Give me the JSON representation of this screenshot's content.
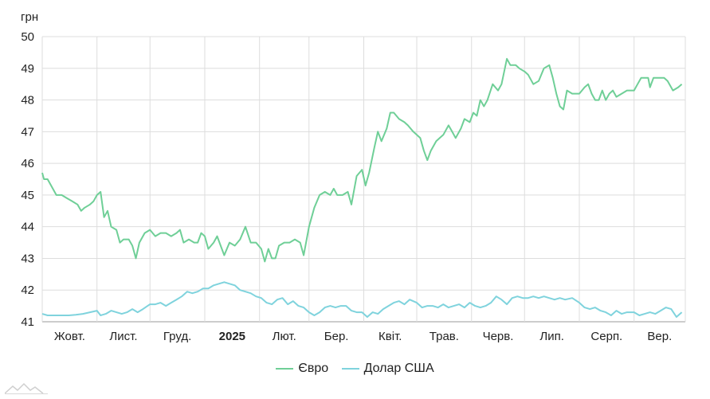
{
  "chart_data": {
    "type": "line",
    "ylabel": "грн",
    "ylim": [
      41,
      50
    ],
    "yticks": [
      "50",
      "49",
      "48",
      "47",
      "46",
      "45",
      "44",
      "43",
      "42",
      "41"
    ],
    "grid": true,
    "legend_position": "bottom-center",
    "xlim": [
      "2024-10-01",
      "2025-09-30"
    ],
    "x_ticks": [
      {
        "date": "2024-10-01",
        "label": "Жовт.",
        "bold": false
      },
      {
        "date": "2024-11-01",
        "label": "Лист.",
        "bold": false
      },
      {
        "date": "2024-12-01",
        "label": "Груд.",
        "bold": false
      },
      {
        "date": "2025-01-01",
        "label": "2025",
        "bold": true
      },
      {
        "date": "2025-02-01",
        "label": "Лют.",
        "bold": false
      },
      {
        "date": "2025-03-01",
        "label": "Бер.",
        "bold": false
      },
      {
        "date": "2025-04-01",
        "label": "Квіт.",
        "bold": false
      },
      {
        "date": "2025-05-01",
        "label": "Трав.",
        "bold": false
      },
      {
        "date": "2025-06-01",
        "label": "Черв.",
        "bold": false
      },
      {
        "date": "2025-07-01",
        "label": "Лип.",
        "bold": false
      },
      {
        "date": "2025-08-01",
        "label": "Серп.",
        "bold": false
      },
      {
        "date": "2025-09-01",
        "label": "Вер.",
        "bold": false
      }
    ],
    "series": [
      {
        "name": "Євро",
        "color": "#6fcf97",
        "points": [
          [
            "2024-10-01",
            45.7
          ],
          [
            "2024-10-02",
            45.5
          ],
          [
            "2024-10-04",
            45.5
          ],
          [
            "2024-10-07",
            45.2
          ],
          [
            "2024-10-09",
            45.0
          ],
          [
            "2024-10-12",
            45.0
          ],
          [
            "2024-10-15",
            44.9
          ],
          [
            "2024-10-18",
            44.8
          ],
          [
            "2024-10-21",
            44.7
          ],
          [
            "2024-10-23",
            44.5
          ],
          [
            "2024-10-25",
            44.6
          ],
          [
            "2024-10-28",
            44.7
          ],
          [
            "2024-10-30",
            44.8
          ],
          [
            "2024-11-01",
            45.0
          ],
          [
            "2024-11-03",
            45.1
          ],
          [
            "2024-11-05",
            44.3
          ],
          [
            "2024-11-07",
            44.5
          ],
          [
            "2024-11-09",
            44.0
          ],
          [
            "2024-11-12",
            43.9
          ],
          [
            "2024-11-14",
            43.5
          ],
          [
            "2024-11-16",
            43.6
          ],
          [
            "2024-11-19",
            43.6
          ],
          [
            "2024-11-21",
            43.4
          ],
          [
            "2024-11-23",
            43.0
          ],
          [
            "2024-11-25",
            43.5
          ],
          [
            "2024-11-28",
            43.8
          ],
          [
            "2024-12-01",
            43.9
          ],
          [
            "2024-12-04",
            43.7
          ],
          [
            "2024-12-07",
            43.8
          ],
          [
            "2024-12-10",
            43.8
          ],
          [
            "2024-12-13",
            43.7
          ],
          [
            "2024-12-16",
            43.8
          ],
          [
            "2024-12-18",
            43.9
          ],
          [
            "2024-12-20",
            43.5
          ],
          [
            "2024-12-23",
            43.6
          ],
          [
            "2024-12-26",
            43.5
          ],
          [
            "2024-12-28",
            43.5
          ],
          [
            "2024-12-30",
            43.8
          ],
          [
            "2025-01-01",
            43.7
          ],
          [
            "2025-01-03",
            43.3
          ],
          [
            "2025-01-06",
            43.5
          ],
          [
            "2025-01-08",
            43.7
          ],
          [
            "2025-01-10",
            43.4
          ],
          [
            "2025-01-12",
            43.1
          ],
          [
            "2025-01-15",
            43.5
          ],
          [
            "2025-01-18",
            43.4
          ],
          [
            "2025-01-21",
            43.6
          ],
          [
            "2025-01-24",
            44.0
          ],
          [
            "2025-01-27",
            43.5
          ],
          [
            "2025-01-30",
            43.5
          ],
          [
            "2025-02-02",
            43.3
          ],
          [
            "2025-02-04",
            42.9
          ],
          [
            "2025-02-06",
            43.3
          ],
          [
            "2025-02-08",
            43.0
          ],
          [
            "2025-02-10",
            43.0
          ],
          [
            "2025-02-12",
            43.4
          ],
          [
            "2025-02-15",
            43.5
          ],
          [
            "2025-02-18",
            43.5
          ],
          [
            "2025-02-21",
            43.6
          ],
          [
            "2025-02-24",
            43.5
          ],
          [
            "2025-02-26",
            43.1
          ],
          [
            "2025-03-01",
            44.0
          ],
          [
            "2025-03-04",
            44.6
          ],
          [
            "2025-03-07",
            45.0
          ],
          [
            "2025-03-10",
            45.1
          ],
          [
            "2025-03-13",
            45.0
          ],
          [
            "2025-03-15",
            45.2
          ],
          [
            "2025-03-17",
            45.0
          ],
          [
            "2025-03-20",
            45.0
          ],
          [
            "2025-03-23",
            45.1
          ],
          [
            "2025-03-25",
            44.7
          ],
          [
            "2025-03-28",
            45.6
          ],
          [
            "2025-03-31",
            45.8
          ],
          [
            "2025-04-02",
            45.3
          ],
          [
            "2025-04-04",
            45.7
          ],
          [
            "2025-04-07",
            46.5
          ],
          [
            "2025-04-09",
            47.0
          ],
          [
            "2025-04-11",
            46.7
          ],
          [
            "2025-04-14",
            47.1
          ],
          [
            "2025-04-16",
            47.6
          ],
          [
            "2025-04-18",
            47.6
          ],
          [
            "2025-04-21",
            47.4
          ],
          [
            "2025-04-24",
            47.3
          ],
          [
            "2025-04-26",
            47.2
          ],
          [
            "2025-04-29",
            47.0
          ],
          [
            "2025-05-01",
            46.9
          ],
          [
            "2025-05-03",
            46.8
          ],
          [
            "2025-05-05",
            46.4
          ],
          [
            "2025-05-07",
            46.1
          ],
          [
            "2025-05-09",
            46.4
          ],
          [
            "2025-05-12",
            46.7
          ],
          [
            "2025-05-14",
            46.8
          ],
          [
            "2025-05-16",
            46.9
          ],
          [
            "2025-05-19",
            47.2
          ],
          [
            "2025-05-21",
            47.0
          ],
          [
            "2025-05-23",
            46.8
          ],
          [
            "2025-05-26",
            47.1
          ],
          [
            "2025-05-28",
            47.4
          ],
          [
            "2025-05-31",
            47.3
          ],
          [
            "2025-06-02",
            47.6
          ],
          [
            "2025-06-04",
            47.5
          ],
          [
            "2025-06-06",
            48.0
          ],
          [
            "2025-06-08",
            47.8
          ],
          [
            "2025-06-10",
            48.0
          ],
          [
            "2025-06-13",
            48.5
          ],
          [
            "2025-06-16",
            48.3
          ],
          [
            "2025-06-18",
            48.5
          ],
          [
            "2025-06-21",
            49.3
          ],
          [
            "2025-06-23",
            49.1
          ],
          [
            "2025-06-26",
            49.1
          ],
          [
            "2025-06-28",
            49.0
          ],
          [
            "2025-07-01",
            48.9
          ],
          [
            "2025-07-03",
            48.8
          ],
          [
            "2025-07-06",
            48.5
          ],
          [
            "2025-07-09",
            48.6
          ],
          [
            "2025-07-12",
            49.0
          ],
          [
            "2025-07-15",
            49.1
          ],
          [
            "2025-07-17",
            48.7
          ],
          [
            "2025-07-19",
            48.2
          ],
          [
            "2025-07-21",
            47.8
          ],
          [
            "2025-07-23",
            47.7
          ],
          [
            "2025-07-25",
            48.3
          ],
          [
            "2025-07-28",
            48.2
          ],
          [
            "2025-08-01",
            48.2
          ],
          [
            "2025-08-04",
            48.4
          ],
          [
            "2025-08-06",
            48.5
          ],
          [
            "2025-08-08",
            48.2
          ],
          [
            "2025-08-10",
            48.0
          ],
          [
            "2025-08-12",
            48.0
          ],
          [
            "2025-08-14",
            48.3
          ],
          [
            "2025-08-16",
            48.0
          ],
          [
            "2025-08-18",
            48.2
          ],
          [
            "2025-08-20",
            48.3
          ],
          [
            "2025-08-22",
            48.1
          ],
          [
            "2025-08-25",
            48.2
          ],
          [
            "2025-08-28",
            48.3
          ],
          [
            "2025-09-01",
            48.3
          ],
          [
            "2025-09-03",
            48.5
          ],
          [
            "2025-09-05",
            48.7
          ],
          [
            "2025-09-07",
            48.7
          ],
          [
            "2025-09-09",
            48.7
          ],
          [
            "2025-09-10",
            48.4
          ],
          [
            "2025-09-12",
            48.7
          ],
          [
            "2025-09-15",
            48.7
          ],
          [
            "2025-09-18",
            48.7
          ],
          [
            "2025-09-20",
            48.6
          ],
          [
            "2025-09-23",
            48.3
          ],
          [
            "2025-09-26",
            48.4
          ],
          [
            "2025-09-28",
            48.5
          ]
        ]
      },
      {
        "name": "Долар США",
        "color": "#7fd3dd",
        "points": [
          [
            "2024-10-01",
            41.25
          ],
          [
            "2024-10-04",
            41.2
          ],
          [
            "2024-10-08",
            41.2
          ],
          [
            "2024-10-12",
            41.2
          ],
          [
            "2024-10-16",
            41.2
          ],
          [
            "2024-10-20",
            41.22
          ],
          [
            "2024-10-24",
            41.25
          ],
          [
            "2024-10-28",
            41.3
          ],
          [
            "2024-11-01",
            41.35
          ],
          [
            "2024-11-03",
            41.2
          ],
          [
            "2024-11-06",
            41.25
          ],
          [
            "2024-11-09",
            41.35
          ],
          [
            "2024-11-12",
            41.3
          ],
          [
            "2024-11-15",
            41.25
          ],
          [
            "2024-11-18",
            41.3
          ],
          [
            "2024-11-21",
            41.4
          ],
          [
            "2024-11-24",
            41.3
          ],
          [
            "2024-11-27",
            41.4
          ],
          [
            "2024-12-01",
            41.55
          ],
          [
            "2024-12-04",
            41.55
          ],
          [
            "2024-12-07",
            41.6
          ],
          [
            "2024-12-10",
            41.5
          ],
          [
            "2024-12-13",
            41.6
          ],
          [
            "2024-12-16",
            41.7
          ],
          [
            "2024-12-19",
            41.8
          ],
          [
            "2024-12-22",
            41.95
          ],
          [
            "2024-12-25",
            41.9
          ],
          [
            "2024-12-28",
            41.95
          ],
          [
            "2024-12-31",
            42.05
          ],
          [
            "2025-01-03",
            42.05
          ],
          [
            "2025-01-06",
            42.15
          ],
          [
            "2025-01-09",
            42.2
          ],
          [
            "2025-01-12",
            42.25
          ],
          [
            "2025-01-15",
            42.2
          ],
          [
            "2025-01-18",
            42.15
          ],
          [
            "2025-01-21",
            42.0
          ],
          [
            "2025-01-24",
            41.95
          ],
          [
            "2025-01-27",
            41.9
          ],
          [
            "2025-01-30",
            41.8
          ],
          [
            "2025-02-02",
            41.75
          ],
          [
            "2025-02-05",
            41.6
          ],
          [
            "2025-02-08",
            41.55
          ],
          [
            "2025-02-11",
            41.7
          ],
          [
            "2025-02-14",
            41.75
          ],
          [
            "2025-02-17",
            41.55
          ],
          [
            "2025-02-20",
            41.65
          ],
          [
            "2025-02-23",
            41.5
          ],
          [
            "2025-02-26",
            41.45
          ],
          [
            "2025-03-01",
            41.3
          ],
          [
            "2025-03-04",
            41.2
          ],
          [
            "2025-03-07",
            41.3
          ],
          [
            "2025-03-10",
            41.45
          ],
          [
            "2025-03-13",
            41.5
          ],
          [
            "2025-03-16",
            41.45
          ],
          [
            "2025-03-19",
            41.5
          ],
          [
            "2025-03-22",
            41.5
          ],
          [
            "2025-03-25",
            41.35
          ],
          [
            "2025-03-28",
            41.3
          ],
          [
            "2025-03-31",
            41.3
          ],
          [
            "2025-04-03",
            41.15
          ],
          [
            "2025-04-06",
            41.3
          ],
          [
            "2025-04-09",
            41.25
          ],
          [
            "2025-04-12",
            41.4
          ],
          [
            "2025-04-15",
            41.5
          ],
          [
            "2025-04-18",
            41.6
          ],
          [
            "2025-04-21",
            41.65
          ],
          [
            "2025-04-24",
            41.55
          ],
          [
            "2025-04-27",
            41.7
          ],
          [
            "2025-05-01",
            41.6
          ],
          [
            "2025-05-04",
            41.45
          ],
          [
            "2025-05-07",
            41.5
          ],
          [
            "2025-05-10",
            41.5
          ],
          [
            "2025-05-13",
            41.45
          ],
          [
            "2025-05-16",
            41.55
          ],
          [
            "2025-05-19",
            41.45
          ],
          [
            "2025-05-22",
            41.5
          ],
          [
            "2025-05-25",
            41.55
          ],
          [
            "2025-05-28",
            41.45
          ],
          [
            "2025-05-31",
            41.6
          ],
          [
            "2025-06-03",
            41.5
          ],
          [
            "2025-06-06",
            41.45
          ],
          [
            "2025-06-09",
            41.5
          ],
          [
            "2025-06-12",
            41.6
          ],
          [
            "2025-06-15",
            41.8
          ],
          [
            "2025-06-18",
            41.7
          ],
          [
            "2025-06-21",
            41.55
          ],
          [
            "2025-06-24",
            41.75
          ],
          [
            "2025-06-27",
            41.8
          ],
          [
            "2025-06-30",
            41.75
          ],
          [
            "2025-07-03",
            41.75
          ],
          [
            "2025-07-06",
            41.8
          ],
          [
            "2025-07-09",
            41.75
          ],
          [
            "2025-07-12",
            41.8
          ],
          [
            "2025-07-15",
            41.75
          ],
          [
            "2025-07-18",
            41.7
          ],
          [
            "2025-07-21",
            41.75
          ],
          [
            "2025-07-24",
            41.7
          ],
          [
            "2025-07-28",
            41.75
          ],
          [
            "2025-08-01",
            41.6
          ],
          [
            "2025-08-04",
            41.45
          ],
          [
            "2025-08-07",
            41.4
          ],
          [
            "2025-08-10",
            41.45
          ],
          [
            "2025-08-13",
            41.35
          ],
          [
            "2025-08-16",
            41.3
          ],
          [
            "2025-08-19",
            41.2
          ],
          [
            "2025-08-22",
            41.35
          ],
          [
            "2025-08-25",
            41.25
          ],
          [
            "2025-08-28",
            41.3
          ],
          [
            "2025-09-01",
            41.3
          ],
          [
            "2025-09-04",
            41.2
          ],
          [
            "2025-09-07",
            41.25
          ],
          [
            "2025-09-10",
            41.3
          ],
          [
            "2025-09-13",
            41.25
          ],
          [
            "2025-09-16",
            41.35
          ],
          [
            "2025-09-19",
            41.45
          ],
          [
            "2025-09-22",
            41.4
          ],
          [
            "2025-09-25",
            41.15
          ],
          [
            "2025-09-28",
            41.3
          ]
        ]
      }
    ]
  }
}
